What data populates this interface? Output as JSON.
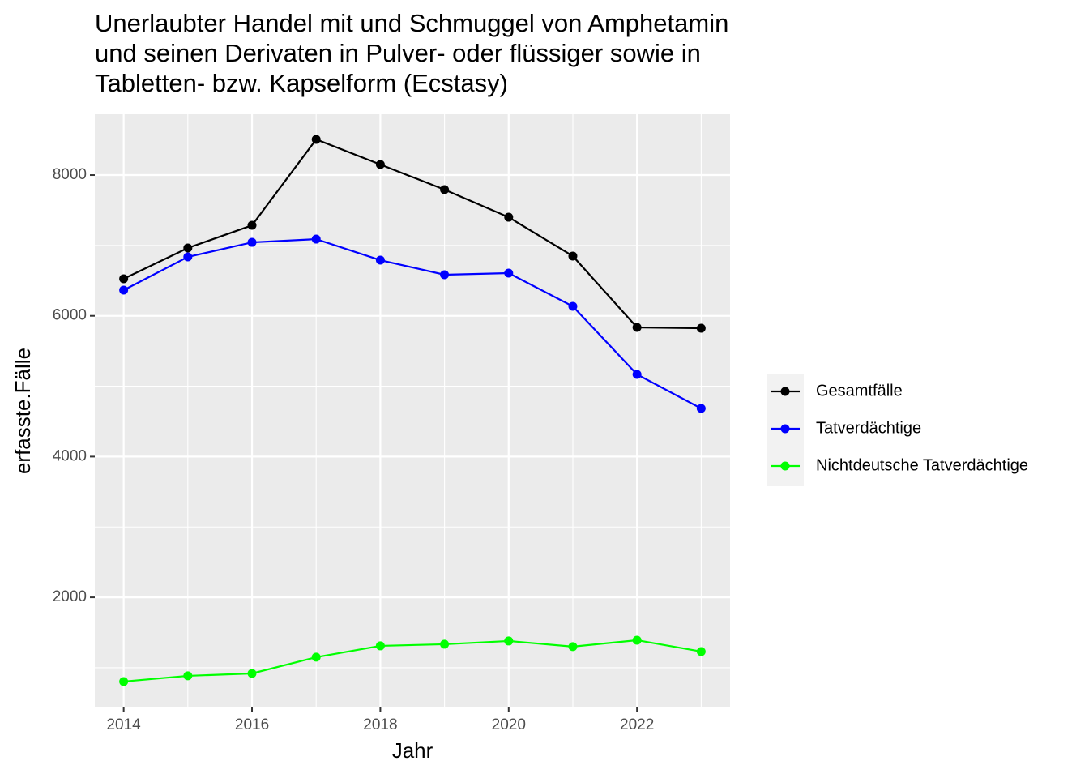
{
  "chart_data": {
    "type": "line",
    "title": "Unerlaubter Handel mit und Schmuggel von Amphetamin\nund seinen Derivaten in Pulver- oder flüssiger sowie in\nTabletten- bzw. Kapselform (Ecstasy)",
    "x_label": "Jahr",
    "y_label": "erfasste.Fälle",
    "x": [
      2014,
      2015,
      2016,
      2017,
      2018,
      2019,
      2020,
      2021,
      2022,
      2023
    ],
    "series": [
      {
        "name": "Gesamtfälle",
        "color": "#000000",
        "values": [
          6526,
          6964,
          7286,
          8507,
          8150,
          7793,
          7401,
          6849,
          5835,
          5824
        ]
      },
      {
        "name": "Tatverdächtige",
        "color": "#0000ff",
        "values": [
          6365,
          6837,
          7044,
          7090,
          6791,
          6584,
          6607,
          6135,
          5168,
          4684
        ]
      },
      {
        "name": "Nichtdeutsche Tatverdächtige",
        "color": "#00ff00",
        "values": [
          804,
          885,
          919,
          1150,
          1311,
          1334,
          1380,
          1300,
          1391,
          1230
        ]
      }
    ],
    "xlim": [
      2013.55,
      2023.45
    ],
    "xticks": [
      2014,
      2016,
      2018,
      2020,
      2022
    ],
    "ylim": [
      435,
      8864
    ],
    "yticks": [
      2000,
      4000,
      6000,
      8000
    ],
    "grid": true,
    "legend": "right"
  }
}
